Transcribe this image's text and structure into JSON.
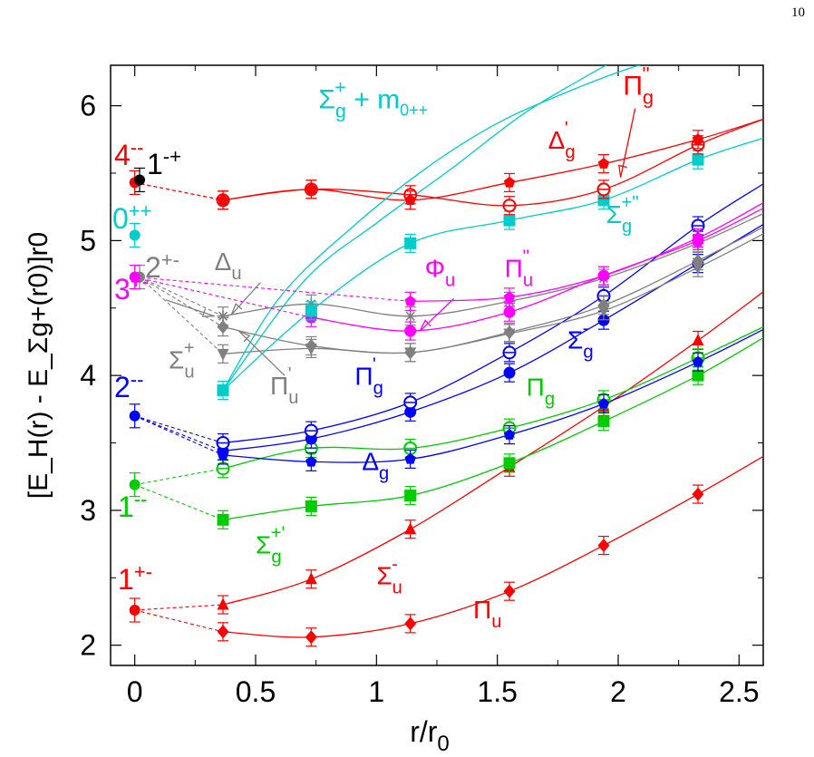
{
  "page": {
    "number": "10"
  },
  "chart_data": {
    "type": "line",
    "title": "",
    "xlabel": "r/r",
    "xlabel_sub": "0",
    "ylabel": "[E_H(r) - E_Σg+(r0)]r0",
    "xlim": [
      -0.1,
      2.6
    ],
    "ylim": [
      1.85,
      6.3
    ],
    "xticks": [
      0,
      0.5,
      1,
      1.5,
      2,
      2.5
    ],
    "xtick_labels": [
      "0",
      "0.5",
      "1",
      "1.5",
      "2",
      "2.5"
    ],
    "yticks": [
      2,
      3,
      4,
      5,
      6
    ],
    "ytick_labels": [
      "2",
      "3",
      "4",
      "5",
      "6"
    ],
    "grid": false,
    "legend": "none",
    "colors": {
      "red": "#ff0000",
      "blue": "#0000ff",
      "green": "#00cc00",
      "cyan": "#00cccc",
      "magenta": "#ff00ff",
      "gray": "#808080",
      "black": "#000000"
    },
    "glueballs": [
      {
        "label": "4",
        "sup": "--",
        "x": 0,
        "y": 5.43,
        "color": "#ff0000"
      },
      {
        "label": "1",
        "sup": "-+",
        "x": 0.02,
        "y": 5.45,
        "color": "#000000"
      },
      {
        "label": "0",
        "sup": "++",
        "x": 0,
        "y": 5.04,
        "color": "#00cccc"
      },
      {
        "label": "2",
        "sup": "+-",
        "x": 0.02,
        "y": 4.73,
        "color": "#808080"
      },
      {
        "label": "3",
        "sup": "+-",
        "x": 0,
        "y": 4.73,
        "color": "#ff00ff"
      },
      {
        "label": "2",
        "sup": "--",
        "x": 0,
        "y": 3.7,
        "color": "#0000ff"
      },
      {
        "label": "1",
        "sup": "--",
        "x": 0,
        "y": 3.19,
        "color": "#00cc00"
      },
      {
        "label": "1",
        "sup": "+-",
        "x": 0,
        "y": 2.26,
        "color": "#ff0000"
      }
    ],
    "series": [
      {
        "color": "#ff0000",
        "marker": "diamond",
        "x": [
          0.365,
          0.73,
          1.14,
          1.55,
          1.94,
          2.33
        ],
        "y": [
          2.1,
          2.06,
          2.16,
          2.4,
          2.74,
          3.12
        ],
        "extend": [
          2.6,
          3.4
        ],
        "link": [
          0,
          2.26
        ]
      },
      {
        "color": "#ff0000",
        "marker": "triangle",
        "x": [
          0.365,
          0.73,
          1.14,
          1.55,
          1.94,
          2.33
        ],
        "y": [
          2.3,
          2.49,
          2.86,
          3.32,
          3.77,
          4.26
        ],
        "extend": [
          2.6,
          4.62
        ],
        "link": [
          0,
          2.26
        ]
      },
      {
        "color": "#00cc00",
        "marker": "square",
        "x": [
          0.365,
          0.73,
          1.14,
          1.55,
          1.94,
          2.33
        ],
        "y": [
          2.93,
          3.03,
          3.11,
          3.35,
          3.66,
          4.0
        ],
        "extend": [
          2.6,
          4.28
        ],
        "link": [
          0,
          3.19
        ]
      },
      {
        "color": "#00cc00",
        "marker": "circle-open",
        "x": [
          0.365,
          0.73,
          1.14,
          1.55,
          1.94,
          2.33
        ],
        "y": [
          3.31,
          3.46,
          3.46,
          3.61,
          3.82,
          4.13
        ],
        "extend": [
          2.6,
          4.36
        ],
        "link": [
          0,
          3.19
        ]
      },
      {
        "color": "#0000ff",
        "marker": "pentagon",
        "x": [
          0.365,
          0.73,
          1.14,
          1.55,
          1.94,
          2.33
        ],
        "y": [
          3.41,
          3.36,
          3.38,
          3.56,
          3.79,
          4.1
        ],
        "extend": [
          2.6,
          4.34
        ],
        "link": [
          0,
          3.7
        ]
      },
      {
        "color": "#0000ff",
        "marker": "circle-filled",
        "x": [
          0.365,
          0.73,
          1.14,
          1.55,
          1.94,
          2.33
        ],
        "y": [
          3.44,
          3.53,
          3.73,
          4.02,
          4.41,
          4.83
        ],
        "extend": [
          2.6,
          5.12
        ],
        "link": [
          0,
          3.7
        ]
      },
      {
        "color": "#0000ff",
        "marker": "circle-open",
        "x": [
          0.365,
          0.73,
          1.14,
          1.55,
          1.94,
          2.33
        ],
        "y": [
          3.5,
          3.59,
          3.8,
          4.17,
          4.59,
          5.11
        ],
        "extend": [
          2.6,
          5.42
        ],
        "link": [
          0,
          3.7
        ]
      },
      {
        "color": "#808080",
        "marker": "triangle-down",
        "x": [
          0.365,
          0.73,
          1.14,
          1.55,
          1.94,
          2.33
        ],
        "y": [
          4.16,
          4.2,
          4.17,
          4.31,
          4.48,
          4.8
        ],
        "extend": [
          2.6,
          5.05
        ],
        "link": [
          0.02,
          4.73
        ]
      },
      {
        "color": "#808080",
        "marker": "diamond",
        "x": [
          0.365,
          0.73,
          1.14,
          1.55,
          1.94,
          2.33
        ],
        "y": [
          4.36,
          4.22,
          4.17,
          4.32,
          4.52,
          4.85
        ],
        "extend": [
          2.6,
          5.1
        ],
        "link": [
          0.02,
          4.73
        ]
      },
      {
        "color": "#808080",
        "marker": "star",
        "x": [
          0.365,
          0.73,
          1.14,
          1.55,
          1.94,
          2.33
        ],
        "y": [
          4.44,
          4.53,
          4.44,
          4.55,
          4.72,
          4.98
        ],
        "extend": [
          2.6,
          5.2
        ],
        "link": [
          0.02,
          4.73
        ]
      },
      {
        "color": "#ff00ff",
        "marker": "circle-filled",
        "x": [
          0.73,
          1.14,
          1.55,
          1.94,
          2.33
        ],
        "y": [
          4.43,
          4.33,
          4.47,
          4.74,
          5.0
        ],
        "extend": [
          2.6,
          5.24
        ],
        "link": [
          0,
          4.73
        ]
      },
      {
        "color": "#ff00ff",
        "marker": "pentagon",
        "x": [
          1.14,
          1.55,
          1.94,
          2.33
        ],
        "y": [
          4.55,
          4.58,
          4.74,
          5.02
        ],
        "extend": [
          2.6,
          5.28
        ],
        "link": [
          0,
          4.73
        ]
      },
      {
        "color": "#00cccc",
        "marker": "square",
        "x": [
          0.365,
          0.73,
          1.14,
          1.55,
          1.94,
          2.33
        ],
        "y": [
          3.89,
          4.48,
          4.98,
          5.15,
          5.3,
          5.6
        ],
        "extend": [
          2.6,
          5.76
        ],
        "link": null
      },
      {
        "color": "#ff0000",
        "marker": "circle-open",
        "x": [
          0.365,
          0.73,
          1.14,
          1.55,
          1.94,
          2.33
        ],
        "y": [
          5.3,
          5.38,
          5.34,
          5.26,
          5.38,
          5.71
        ],
        "extend": [
          2.6,
          5.9
        ],
        "link": [
          0,
          5.43
        ]
      },
      {
        "color": "#ff0000",
        "marker": "pentagon",
        "x": [
          0.365,
          0.73,
          1.14,
          1.55,
          1.94,
          2.33
        ],
        "y": [
          5.3,
          5.38,
          5.3,
          5.43,
          5.57,
          5.75
        ],
        "extend": [
          2.6,
          5.9
        ],
        "link": [
          0,
          5.43
        ]
      },
      {
        "color": "#00cccc",
        "marker": "none",
        "x": [
          0.365,
          0.6,
          0.9,
          1.2,
          1.5,
          1.8,
          2.05,
          2.2
        ],
        "y": [
          3.89,
          4.58,
          5.1,
          5.53,
          5.87,
          6.11,
          6.28,
          6.35
        ],
        "extend": null,
        "link": null
      },
      {
        "color": "#00cccc",
        "marker": "none",
        "x": [
          0.365,
          0.7,
          1.0,
          1.3,
          1.6,
          1.85,
          2.0
        ],
        "y": [
          3.89,
          4.7,
          5.13,
          5.52,
          5.93,
          6.2,
          6.35
        ],
        "extend": null,
        "link": null
      }
    ],
    "annotations": [
      {
        "base": "Σ",
        "sup": "+",
        "sub": "g",
        "tail": " + m",
        "tailsub": "0++",
        "color": "#00cccc",
        "x": 0.76,
        "y": 5.98,
        "size": 30
      },
      {
        "base": "Π",
        "sup": "''",
        "sub": "g",
        "color": "#ff0000",
        "x": 2.02,
        "y": 6.08,
        "size": 30
      },
      {
        "base": "Δ",
        "sup": "'",
        "sub": "g",
        "color": "#ff0000",
        "x": 1.71,
        "y": 5.68,
        "size": 28
      },
      {
        "base": "Σ",
        "sup": "+''",
        "sub": "g",
        "color": "#00cccc",
        "x": 1.95,
        "y": 5.13,
        "size": 28
      },
      {
        "base": "Φ",
        "sup": "",
        "sub": "u",
        "color": "#ff00ff",
        "x": 1.2,
        "y": 4.73,
        "size": 28
      },
      {
        "base": "Π",
        "sup": "''",
        "sub": "u",
        "color": "#ff00ff",
        "x": 1.53,
        "y": 4.73,
        "size": 28
      },
      {
        "base": "Δ",
        "sup": "",
        "sub": "u",
        "color": "#808080",
        "x": 0.33,
        "y": 4.78,
        "size": 28
      },
      {
        "base": "Σ",
        "sup": "+",
        "sub": "u",
        "color": "#808080",
        "x": 0.14,
        "y": 4.05,
        "size": 28
      },
      {
        "base": "Π",
        "sup": "'",
        "sub": "u",
        "color": "#808080",
        "x": 0.56,
        "y": 3.86,
        "size": 28
      },
      {
        "base": "Π",
        "sup": "'",
        "sub": "g",
        "color": "#0000ff",
        "x": 0.91,
        "y": 3.93,
        "size": 28
      },
      {
        "base": "Σ",
        "sup": "-",
        "sub": "g",
        "color": "#0000ff",
        "x": 1.79,
        "y": 4.2,
        "size": 28
      },
      {
        "base": "Π",
        "sup": "",
        "sub": "g",
        "color": "#00cc00",
        "x": 1.62,
        "y": 3.85,
        "size": 28
      },
      {
        "base": "Δ",
        "sup": "",
        "sub": "g",
        "color": "#0000ff",
        "x": 0.94,
        "y": 3.3,
        "size": 28
      },
      {
        "base": "Σ",
        "sup": "+'",
        "sub": "g",
        "color": "#00cc00",
        "x": 0.5,
        "y": 2.68,
        "size": 28
      },
      {
        "base": "Σ",
        "sup": "-",
        "sub": "u",
        "color": "#ff0000",
        "x": 1.0,
        "y": 2.45,
        "size": 28
      },
      {
        "base": "Π",
        "sup": "",
        "sub": "u",
        "color": "#ff0000",
        "x": 1.4,
        "y": 2.2,
        "size": 28
      }
    ],
    "arrows": [
      {
        "from": [
          2.07,
          5.98
        ],
        "to": [
          2.01,
          5.47
        ],
        "color": "#ff0000"
      },
      {
        "from": [
          1.32,
          4.57
        ],
        "to": [
          1.18,
          4.33
        ],
        "color": "#ff00ff"
      },
      {
        "from": [
          0.52,
          4.69
        ],
        "to": [
          0.4,
          4.45
        ],
        "color": "#808080"
      },
      {
        "from": [
          0.13,
          4.56
        ],
        "to": [
          0.33,
          4.44
        ],
        "color": "#808080"
      },
      {
        "from": [
          0.62,
          4.0
        ],
        "to": [
          0.43,
          4.33
        ],
        "color": "#808080"
      }
    ]
  }
}
